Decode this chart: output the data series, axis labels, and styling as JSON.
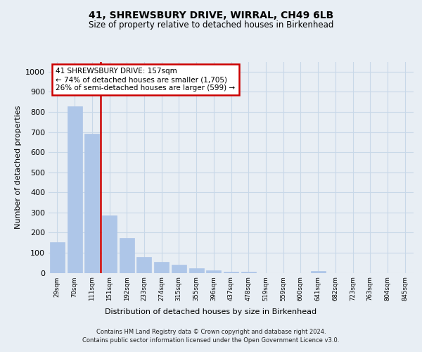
{
  "title": "41, SHREWSBURY DRIVE, WIRRAL, CH49 6LB",
  "subtitle": "Size of property relative to detached houses in Birkenhead",
  "xlabel": "Distribution of detached houses by size in Birkenhead",
  "ylabel": "Number of detached properties",
  "bar_labels": [
    "29sqm",
    "70sqm",
    "111sqm",
    "151sqm",
    "192sqm",
    "233sqm",
    "274sqm",
    "315sqm",
    "355sqm",
    "396sqm",
    "437sqm",
    "478sqm",
    "519sqm",
    "559sqm",
    "600sqm",
    "641sqm",
    "682sqm",
    "723sqm",
    "763sqm",
    "804sqm",
    "845sqm"
  ],
  "bar_values": [
    152,
    829,
    690,
    285,
    172,
    78,
    54,
    42,
    22,
    12,
    6,
    5,
    0,
    0,
    0,
    10,
    0,
    0,
    0,
    0,
    0
  ],
  "bar_color": "#aec6e8",
  "grid_color": "#c8d8e8",
  "vline_color": "#cc0000",
  "annotation_text": "41 SHREWSBURY DRIVE: 157sqm\n← 74% of detached houses are smaller (1,705)\n26% of semi-detached houses are larger (599) →",
  "annotation_box_color": "#ffffff",
  "annotation_box_edge": "#cc0000",
  "footer_line1": "Contains HM Land Registry data © Crown copyright and database right 2024.",
  "footer_line2": "Contains public sector information licensed under the Open Government Licence v3.0.",
  "ylim": [
    0,
    1050
  ],
  "yticks": [
    0,
    100,
    200,
    300,
    400,
    500,
    600,
    700,
    800,
    900,
    1000
  ],
  "bg_color": "#e8eef4",
  "plot_bg_color": "#e8eef4",
  "vline_bar_index": 3
}
